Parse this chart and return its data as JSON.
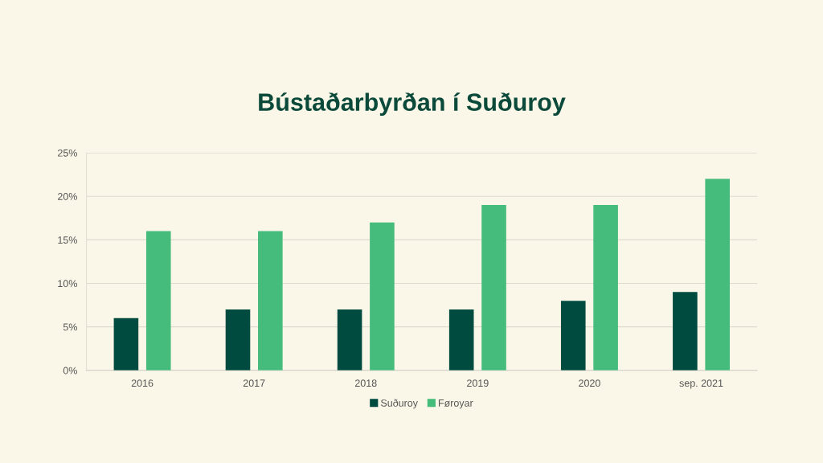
{
  "chart_data": {
    "type": "bar",
    "title": "Bústaðarbyrðan í Suðuroy",
    "categories": [
      "2016",
      "2017",
      "2018",
      "2019",
      "2020",
      "sep. 2021"
    ],
    "series": [
      {
        "name": "Suðuroy",
        "color": "#004b3f",
        "values": [
          6,
          7,
          7,
          7,
          8,
          9
        ]
      },
      {
        "name": "Føroyar",
        "color": "#45bc7b",
        "values": [
          16,
          16,
          17,
          19,
          19,
          22
        ]
      }
    ],
    "ylim": [
      0,
      25
    ],
    "yticks": [
      {
        "value": 0,
        "label": "0%"
      },
      {
        "value": 5,
        "label": "5%"
      },
      {
        "value": 10,
        "label": "10%"
      },
      {
        "value": 15,
        "label": "15%"
      },
      {
        "value": 20,
        "label": "20%"
      },
      {
        "value": 25,
        "label": "25%"
      }
    ],
    "grid": "y",
    "legend": "bottom"
  }
}
